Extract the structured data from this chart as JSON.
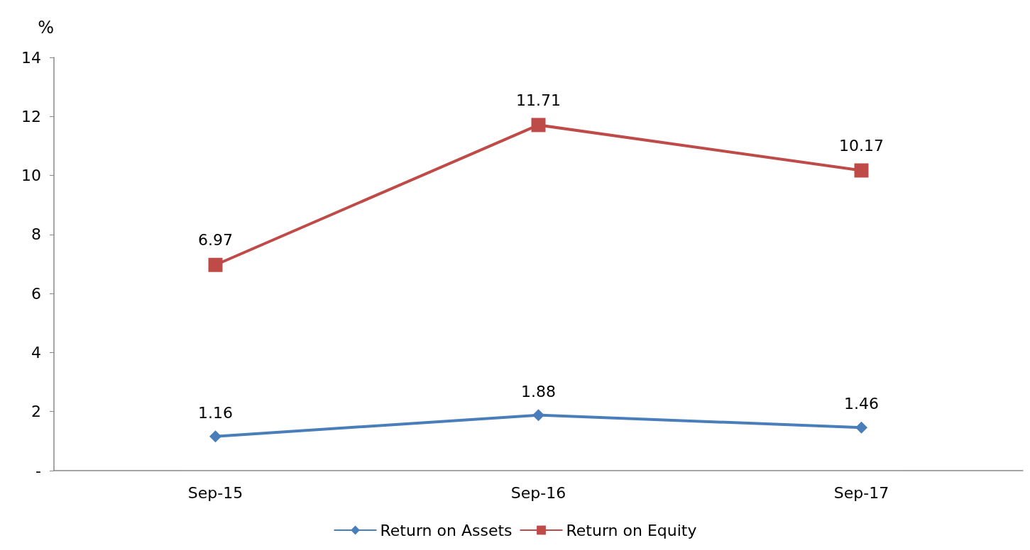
{
  "chart_data": {
    "type": "line",
    "ylabel": "%",
    "categories": [
      "Sep-15",
      "Sep-16",
      "Sep-17"
    ],
    "series": [
      {
        "name": "Return on Assets",
        "color": "#4a7ebb",
        "marker": "diamond",
        "values": [
          1.16,
          1.88,
          1.46
        ]
      },
      {
        "name": "Return on Equity",
        "color": "#be4b48",
        "marker": "square",
        "values": [
          6.97,
          11.71,
          10.17
        ]
      }
    ],
    "ylim": [
      0,
      14
    ],
    "yticks": [
      {
        "value": 0,
        "label": "-"
      },
      2,
      4,
      6,
      8,
      10,
      12,
      14
    ],
    "grid": false,
    "legend": "bottom",
    "data_labels": true,
    "line_style": "solid"
  }
}
